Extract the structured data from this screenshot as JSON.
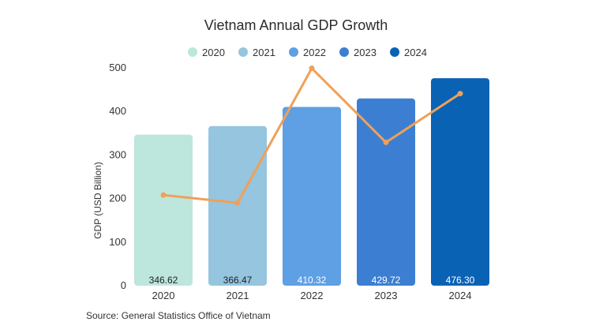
{
  "chart_data": {
    "type": "bar",
    "title": "Vietnam Annual GDP Growth",
    "ylabel": "GDP (USD Billion)",
    "xlabel": "",
    "categories": [
      "2020",
      "2021",
      "2022",
      "2023",
      "2024"
    ],
    "values": [
      346.62,
      366.47,
      410.32,
      429.72,
      476.3
    ],
    "value_labels": [
      "346.62",
      "366.47",
      "410.32",
      "429.72",
      "476.30"
    ],
    "bar_colors": [
      "#bde6dc",
      "#95c5df",
      "#5f9fe3",
      "#3c7fd2",
      "#0a62b5"
    ],
    "label_colors": [
      "#222222",
      "#222222",
      "#ffffff",
      "#ffffff",
      "#ffffff"
    ],
    "legend": [
      "2020",
      "2021",
      "2022",
      "2023",
      "2024"
    ],
    "legend_placement": "top",
    "ylim": [
      0,
      500
    ],
    "yticks": [
      0,
      100,
      200,
      300,
      400,
      500
    ],
    "grid": false,
    "overlay_line": {
      "type": "line",
      "color": "#f0a058",
      "values": [
        208,
        190,
        499,
        329,
        441
      ]
    },
    "source": "Source: General Statistics Office of Vietnam"
  }
}
